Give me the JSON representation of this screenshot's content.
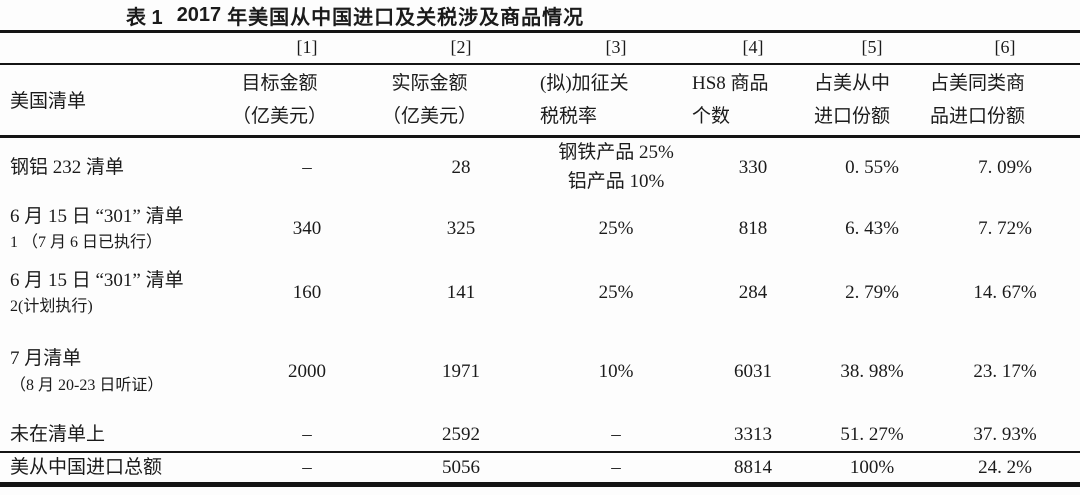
{
  "title": {
    "prefix": "表 1",
    "year": "2017",
    "suffix": "年美国从中国进口及关税涉及商品情况"
  },
  "table": {
    "index_row": [
      "[1]",
      "[2]",
      "[3]",
      "[4]",
      "[5]",
      "[6]"
    ],
    "header": {
      "row_label": "美国清单",
      "columns": [
        {
          "lines": [
            "目标金额",
            "（亿美元）"
          ]
        },
        {
          "lines": [
            "实际金额",
            "（亿美元）"
          ]
        },
        {
          "lines": [
            "(拟)加征关",
            "税税率"
          ]
        },
        {
          "lines": [
            "HS8 商品",
            "个数"
          ]
        },
        {
          "lines": [
            "占美从中",
            "进口份额"
          ]
        },
        {
          "lines": [
            "占美同类商",
            "品进口份额"
          ]
        }
      ]
    },
    "rows": [
      {
        "label_lines": [
          "钢铝 232 清单"
        ],
        "cells": [
          {
            "lines": [
              "–"
            ]
          },
          {
            "lines": [
              "28"
            ]
          },
          {
            "lines": [
              "钢铁产品 25%",
              "铝产品 10%"
            ]
          },
          {
            "lines": [
              "330"
            ]
          },
          {
            "lines": [
              "0. 55%"
            ]
          },
          {
            "lines": [
              "7. 09%"
            ]
          }
        ]
      },
      {
        "label_lines": [
          "6 月 15 日 “301” 清单",
          "1 （7 月 6 日已执行）"
        ],
        "cells": [
          {
            "lines": [
              "340"
            ]
          },
          {
            "lines": [
              "325"
            ]
          },
          {
            "lines": [
              "25%"
            ]
          },
          {
            "lines": [
              "818"
            ]
          },
          {
            "lines": [
              "6. 43%"
            ]
          },
          {
            "lines": [
              "7. 72%"
            ]
          }
        ]
      },
      {
        "label_lines": [
          "6 月 15 日 “301” 清单",
          "2(计划执行)"
        ],
        "cells": [
          {
            "lines": [
              "160"
            ]
          },
          {
            "lines": [
              "141"
            ]
          },
          {
            "lines": [
              "25%"
            ]
          },
          {
            "lines": [
              "284"
            ]
          },
          {
            "lines": [
              "2. 79%"
            ]
          },
          {
            "lines": [
              "14. 67%"
            ]
          }
        ]
      },
      {
        "label_lines": [
          "7 月清单",
          "（8 月 20-23 日听证）"
        ],
        "cells": [
          {
            "lines": [
              "2000"
            ]
          },
          {
            "lines": [
              "1971"
            ]
          },
          {
            "lines": [
              "10%"
            ]
          },
          {
            "lines": [
              "6031"
            ]
          },
          {
            "lines": [
              "38. 98%"
            ]
          },
          {
            "lines": [
              "23. 17%"
            ]
          }
        ]
      },
      {
        "label_lines": [
          "未在清单上"
        ],
        "cells": [
          {
            "lines": [
              "–"
            ]
          },
          {
            "lines": [
              "2592"
            ]
          },
          {
            "lines": [
              "–"
            ]
          },
          {
            "lines": [
              "3313"
            ]
          },
          {
            "lines": [
              "51. 27%"
            ]
          },
          {
            "lines": [
              "37. 93%"
            ]
          }
        ]
      },
      {
        "label_lines": [
          "美从中国进口总额"
        ],
        "cells": [
          {
            "lines": [
              "–"
            ]
          },
          {
            "lines": [
              "5056"
            ]
          },
          {
            "lines": [
              "–"
            ]
          },
          {
            "lines": [
              "8814"
            ]
          },
          {
            "lines": [
              "100%"
            ]
          },
          {
            "lines": [
              "24. 2%"
            ]
          }
        ]
      }
    ]
  }
}
